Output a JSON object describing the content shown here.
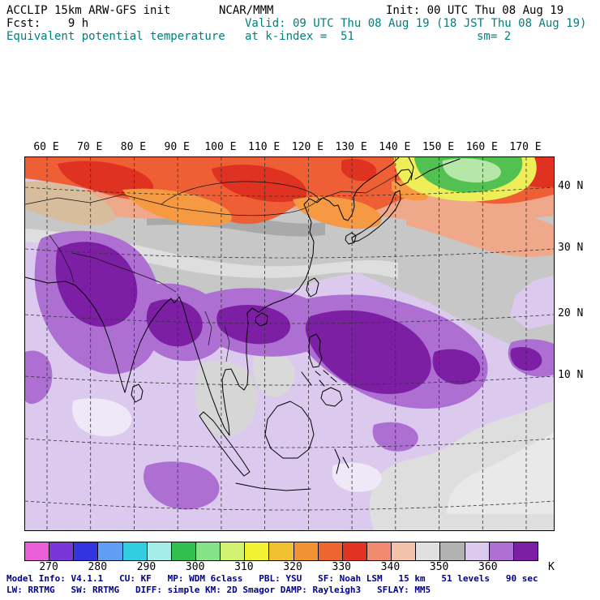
{
  "header": {
    "model": "ACCLIP 15km ARW-GFS init",
    "org": "NCAR/MMM",
    "init": "Init: 00 UTC Thu 08 Aug 19",
    "fcst": "Fcst:    9 h",
    "valid": "Valid: 09 UTC Thu 08 Aug 19 (18 JST Thu 08 Aug 19)",
    "field": "Equivalent potential temperature",
    "level": "at k-index =  51",
    "smooth": "sm= 2"
  },
  "map": {
    "lon_labels": [
      "60 E",
      "70 E",
      "80 E",
      "90 E",
      "100 E",
      "110 E",
      "120 E",
      "130 E",
      "140 E",
      "150 E",
      "160 E",
      "170 E"
    ],
    "lat_labels": [
      "40 N",
      "30 N",
      "20 N",
      "10 N"
    ]
  },
  "colorbar": {
    "unit": "K",
    "tick_labels": [
      "270",
      "280",
      "290",
      "300",
      "310",
      "320",
      "330",
      "340",
      "350",
      "360"
    ],
    "colors": [
      "#e85fd8",
      "#7a35d8",
      "#3333e0",
      "#5f9ef2",
      "#33cde2",
      "#a5ede8",
      "#33bf4d",
      "#86e286",
      "#d2f272",
      "#f2f233",
      "#f2c133",
      "#f29333",
      "#ef6530",
      "#e23322",
      "#f28a70",
      "#f2c2ab",
      "#e0e0e0",
      "#b2b2b2",
      "#dccaee",
      "#ad6fd2",
      "#7d1fa5"
    ]
  },
  "footer": {
    "line1": "Model Info: V4.1.1   CU: KF   MP: WDM 6class   PBL: YSU   SF: Noah LSM   15 km   51 levels   90 sec",
    "line2": "LW: RRTMG   SW: RRTMG   DIFF: simple KM: 2D Smagor DAMP: Rayleigh3   SFLAY: MM5"
  },
  "chart_data": {
    "type": "heatmap",
    "title": "Equivalent potential temperature at k-index = 51",
    "unit": "K",
    "scale_ticks": [
      270,
      280,
      290,
      300,
      310,
      320,
      330,
      340,
      350,
      360
    ],
    "scale_range": [
      265,
      370
    ],
    "legend_position": "bottom",
    "domain": {
      "lon": [
        55,
        180
      ],
      "lat": [
        -12,
        46
      ]
    },
    "regions": [
      {
        "area": "northern band 40-45N (Mongolia, N China, Okhotsk)",
        "value_K": "325-340"
      },
      {
        "area": "northeast patch ~148-165E near 42N",
        "value_K": "295-315"
      },
      {
        "area": "mid-latitude band ~28-36N",
        "value_K": "345-355"
      },
      {
        "area": "tropics and subtropics (India, SE Asia, W Pacific)",
        "value_K": "355-365"
      },
      {
        "area": "cores over NW India, Bay of Bengal, S China, sea E of Taiwan",
        "value_K": "365+"
      }
    ]
  }
}
